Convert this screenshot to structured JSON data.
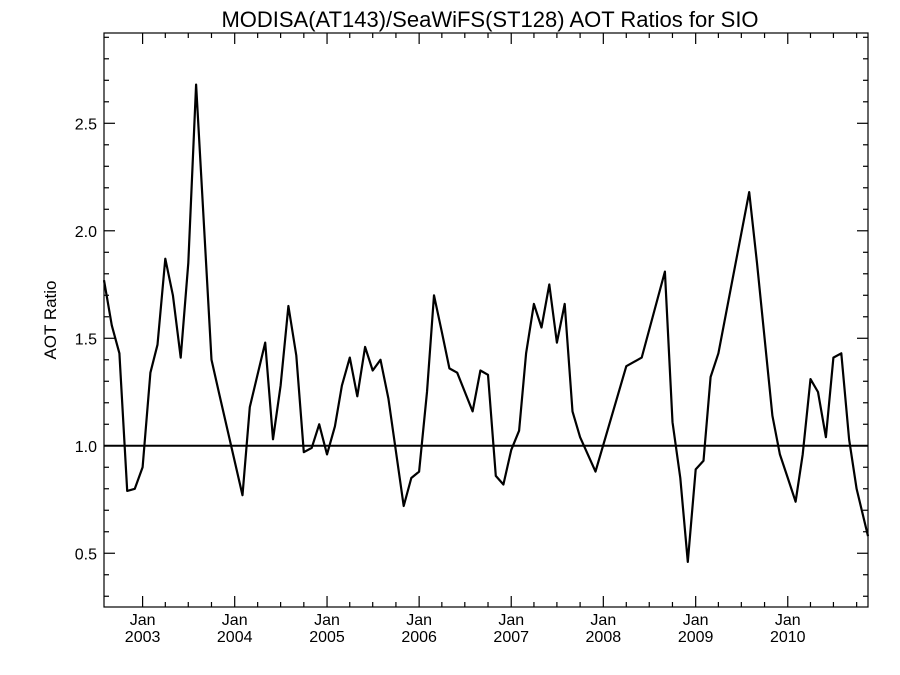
{
  "chart_data": {
    "type": "line",
    "title": "MODISA(AT143)/SeaWiFS(ST128)  AOT Ratios for SIO",
    "xlabel": "",
    "ylabel": "AOT Ratio",
    "ylim": [
      0.25,
      2.92
    ],
    "xlim": [
      "2002-08-01",
      "2010-11-15"
    ],
    "yticks": [
      0.5,
      1.0,
      1.5,
      2.0,
      2.5
    ],
    "ytick_labels": [
      "0.5",
      "1.0",
      "1.5",
      "2.0",
      "2.5"
    ],
    "xticks": [
      {
        "date": "2003-01-01",
        "month": "Jan",
        "year": "2003"
      },
      {
        "date": "2004-01-01",
        "month": "Jan",
        "year": "2004"
      },
      {
        "date": "2005-01-01",
        "month": "Jan",
        "year": "2005"
      },
      {
        "date": "2006-01-01",
        "month": "Jan",
        "year": "2006"
      },
      {
        "date": "2007-01-01",
        "month": "Jan",
        "year": "2007"
      },
      {
        "date": "2008-01-01",
        "month": "Jan",
        "year": "2008"
      },
      {
        "date": "2009-01-01",
        "month": "Jan",
        "year": "2009"
      },
      {
        "date": "2010-01-01",
        "month": "Jan",
        "year": "2010"
      }
    ],
    "minor_xticks": [
      "2003-04-01",
      "2003-07-01",
      "2003-10-01",
      "2004-04-01",
      "2004-07-01",
      "2004-10-01",
      "2005-04-01",
      "2005-07-01",
      "2005-10-01",
      "2006-04-01",
      "2006-07-01",
      "2006-10-01",
      "2007-04-01",
      "2007-07-01",
      "2007-10-01",
      "2008-04-01",
      "2008-07-01",
      "2008-10-01",
      "2009-04-01",
      "2009-07-01",
      "2009-10-01",
      "2010-04-01",
      "2010-07-01",
      "2010-10-01"
    ],
    "reference_line": {
      "y": 1.0
    },
    "series": [
      {
        "x": [
          "2002-08-01",
          "2002-09-01",
          "2002-10-01",
          "2002-11-01",
          "2002-12-01",
          "2003-01-01",
          "2003-02-01",
          "2003-03-01",
          "2003-04-01",
          "2003-05-01",
          "2003-06-01",
          "2003-07-01",
          "2003-08-01",
          "2003-10-01",
          "2003-11-01",
          "2004-02-01",
          "2004-03-01",
          "2004-05-01",
          "2004-06-01",
          "2004-07-01",
          "2004-08-01",
          "2004-09-01",
          "2004-10-01",
          "2004-11-01",
          "2004-12-01",
          "2005-01-01",
          "2005-02-01",
          "2005-03-01",
          "2005-04-01",
          "2005-05-01",
          "2005-06-01",
          "2005-07-01",
          "2005-08-01",
          "2005-09-01",
          "2005-11-01",
          "2005-12-01",
          "2006-01-01",
          "2006-02-01",
          "2006-03-01",
          "2006-04-01",
          "2006-05-01",
          "2006-06-01",
          "2006-08-01",
          "2006-09-01",
          "2006-10-01",
          "2006-11-01",
          "2006-12-01",
          "2007-01-01",
          "2007-02-01",
          "2007-03-01",
          "2007-04-01",
          "2007-05-01",
          "2007-06-01",
          "2007-07-01",
          "2007-08-01",
          "2007-09-01",
          "2007-10-01",
          "2007-12-01",
          "2008-04-01",
          "2008-06-01",
          "2008-09-01",
          "2008-10-01",
          "2008-11-01",
          "2008-12-01",
          "2009-01-01",
          "2009-02-01",
          "2009-03-01",
          "2009-04-01",
          "2009-08-01",
          "2009-09-01",
          "2009-11-01",
          "2009-12-01",
          "2010-01-01",
          "2010-02-01",
          "2010-03-01",
          "2010-04-01",
          "2010-05-01",
          "2010-06-01",
          "2010-07-01",
          "2010-08-01",
          "2010-09-01",
          "2010-10-01",
          "2010-11-15"
        ],
        "y": [
          1.77,
          1.56,
          1.43,
          0.79,
          0.8,
          0.9,
          1.34,
          1.47,
          1.87,
          1.7,
          1.41,
          1.85,
          2.68,
          1.4,
          1.24,
          0.77,
          1.18,
          1.48,
          1.03,
          1.28,
          1.65,
          1.42,
          0.97,
          0.99,
          1.1,
          0.96,
          1.09,
          1.28,
          1.41,
          1.23,
          1.46,
          1.35,
          1.4,
          1.22,
          0.72,
          0.85,
          0.88,
          1.25,
          1.7,
          1.53,
          1.36,
          1.34,
          1.16,
          1.35,
          1.33,
          0.86,
          0.82,
          0.98,
          1.07,
          1.43,
          1.66,
          1.55,
          1.75,
          1.48,
          1.66,
          1.16,
          1.04,
          0.88,
          1.37,
          1.41,
          1.81,
          1.11,
          0.85,
          0.46,
          0.89,
          0.93,
          1.32,
          1.43,
          2.18,
          1.85,
          1.14,
          0.96,
          0.85,
          0.74,
          0.96,
          1.31,
          1.25,
          1.04,
          1.41,
          1.43,
          1.03,
          0.8,
          0.58
        ]
      }
    ]
  }
}
